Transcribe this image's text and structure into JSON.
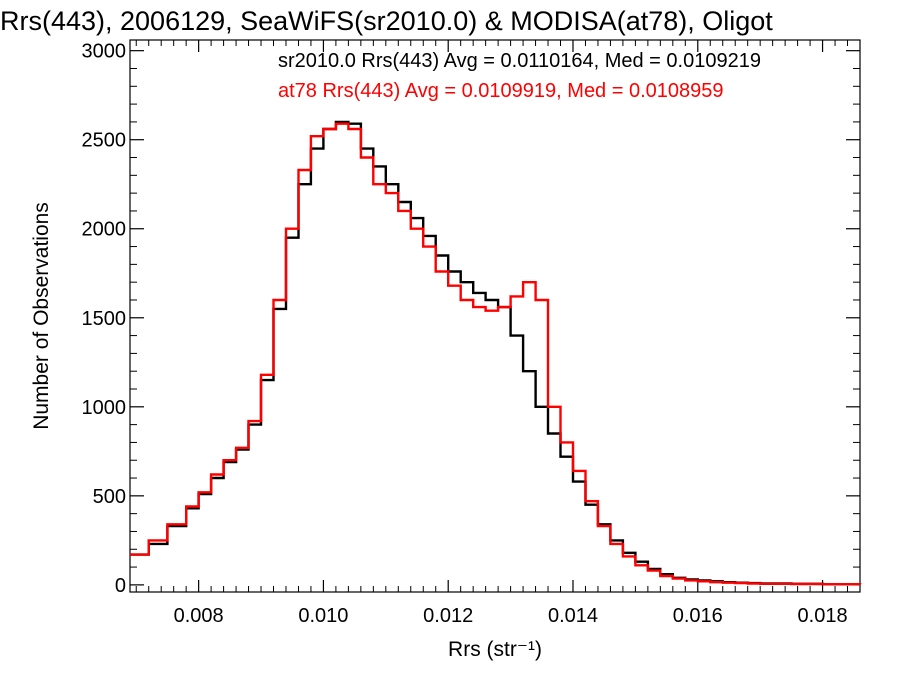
{
  "chart_data": {
    "type": "line",
    "title": "Rrs(443), 2006129, SeaWiFS(sr2010.0) & MODISA(at78), Oligot",
    "xlabel": "Rrs (str⁻¹)",
    "ylabel": "Number of Observations",
    "xlim": [
      0.0069,
      0.0186
    ],
    "ylim": [
      -40,
      3060
    ],
    "x_ticks": [
      {
        "value": 0.008,
        "label": "0.008"
      },
      {
        "value": 0.01,
        "label": "0.010"
      },
      {
        "value": 0.012,
        "label": "0.012"
      },
      {
        "value": 0.014,
        "label": "0.014"
      },
      {
        "value": 0.016,
        "label": "0.016"
      },
      {
        "value": 0.018,
        "label": "0.018"
      }
    ],
    "y_ticks": [
      {
        "value": 0,
        "label": "0"
      },
      {
        "value": 500,
        "label": "500"
      },
      {
        "value": 1000,
        "label": "1000"
      },
      {
        "value": 1500,
        "label": "1500"
      },
      {
        "value": 2000,
        "label": "2000"
      },
      {
        "value": 2500,
        "label": "2500"
      },
      {
        "value": 3000,
        "label": "3000"
      }
    ],
    "grid": false,
    "legend_position": "top-right",
    "series": [
      {
        "name": "sr2010.0 Rrs(443) Avg = 0.0110164, Med = 0.0109219",
        "color": "#000000",
        "x": [
          0.0069,
          0.0072,
          0.0075,
          0.0078,
          0.008,
          0.0082,
          0.0084,
          0.0086,
          0.0088,
          0.009,
          0.0092,
          0.0094,
          0.0096,
          0.0098,
          0.01,
          0.0102,
          0.0104,
          0.0106,
          0.0108,
          0.011,
          0.0112,
          0.0114,
          0.0116,
          0.0118,
          0.012,
          0.0122,
          0.0124,
          0.0126,
          0.0128,
          0.013,
          0.0132,
          0.0134,
          0.0136,
          0.0138,
          0.014,
          0.0142,
          0.0144,
          0.0146,
          0.0148,
          0.015,
          0.0152,
          0.0154,
          0.0156,
          0.0158,
          0.016,
          0.0162,
          0.0164,
          0.0166,
          0.0168,
          0.017,
          0.0175,
          0.018,
          0.0186
        ],
        "y": [
          170,
          230,
          330,
          430,
          510,
          600,
          690,
          760,
          900,
          1150,
          1550,
          1950,
          2250,
          2450,
          2560,
          2600,
          2590,
          2450,
          2350,
          2250,
          2150,
          2060,
          1960,
          1850,
          1760,
          1700,
          1640,
          1600,
          1560,
          1400,
          1200,
          1000,
          850,
          720,
          580,
          450,
          340,
          250,
          180,
          130,
          90,
          60,
          40,
          30,
          25,
          20,
          15,
          12,
          10,
          8,
          6,
          4,
          3
        ]
      },
      {
        "name": "at78 Rrs(443) Avg = 0.0109919, Med = 0.0108959",
        "color": "#ff0000",
        "x": [
          0.0069,
          0.0072,
          0.0075,
          0.0078,
          0.008,
          0.0082,
          0.0084,
          0.0086,
          0.0088,
          0.009,
          0.0092,
          0.0094,
          0.0096,
          0.0098,
          0.01,
          0.0102,
          0.0104,
          0.0106,
          0.0108,
          0.011,
          0.0112,
          0.0114,
          0.0116,
          0.0118,
          0.012,
          0.0122,
          0.0124,
          0.0126,
          0.0128,
          0.013,
          0.0132,
          0.0134,
          0.0136,
          0.0138,
          0.014,
          0.0142,
          0.0144,
          0.0146,
          0.0148,
          0.015,
          0.0152,
          0.0154,
          0.0156,
          0.0158,
          0.016,
          0.0162,
          0.0164,
          0.0166,
          0.0168,
          0.017,
          0.0175,
          0.018,
          0.0186
        ],
        "y": [
          170,
          250,
          340,
          440,
          520,
          620,
          700,
          770,
          920,
          1180,
          1600,
          2000,
          2330,
          2520,
          2560,
          2590,
          2560,
          2400,
          2250,
          2200,
          2100,
          2000,
          1900,
          1760,
          1680,
          1600,
          1560,
          1540,
          1560,
          1620,
          1700,
          1600,
          1000,
          800,
          640,
          470,
          330,
          230,
          160,
          110,
          80,
          50,
          35,
          25,
          20,
          15,
          12,
          10,
          8,
          6,
          5,
          4,
          3
        ]
      }
    ]
  }
}
